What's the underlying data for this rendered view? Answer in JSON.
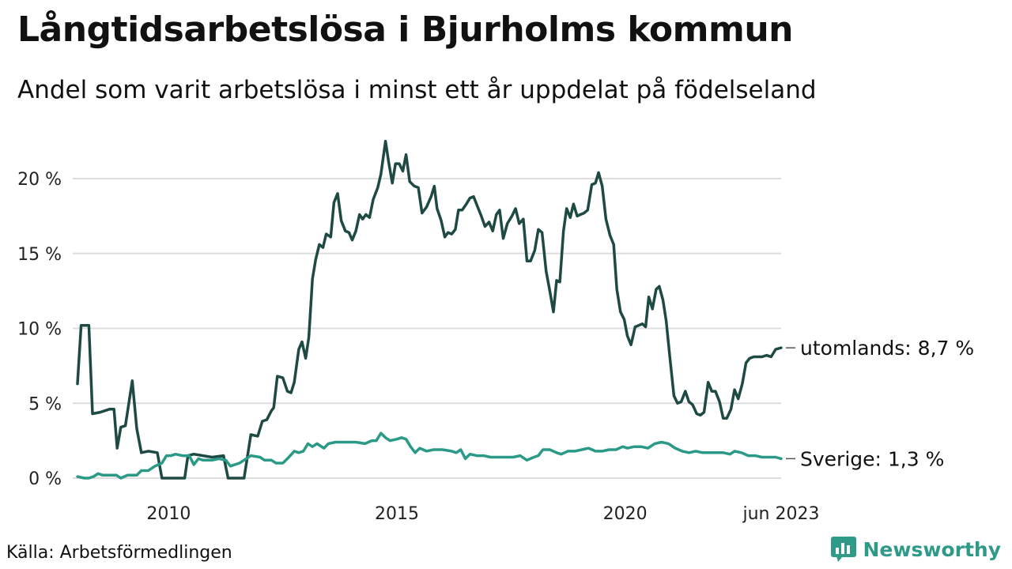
{
  "header": {
    "title": "Långtidsarbetslösa i Bjurholms kommun",
    "subtitle": "Andel som varit arbetslösa i minst ett år uppdelat på födelseland"
  },
  "footer": {
    "source": "Källa: Arbetsförmedlingen",
    "brand": "Newsworthy"
  },
  "colors": {
    "utomlands": "#1f4a43",
    "sverige": "#2a9a87",
    "grid": "#dddddd",
    "brand": "#2e9a87"
  },
  "icons": {
    "brand_logo": "bar-chart-speech-bubble-icon"
  },
  "chart_data": {
    "type": "line",
    "x_unit": "year",
    "x_range": [
      2008.0,
      2023.42
    ],
    "ylim": [
      0,
      22
    ],
    "y_ticks": [
      0,
      5,
      10,
      15,
      20
    ],
    "y_tick_labels": [
      "0 %",
      "5 %",
      "10 %",
      "15 %",
      "20 %"
    ],
    "x_ticks": [
      2010,
      2015,
      2020,
      2023.42
    ],
    "x_tick_labels": [
      "2010",
      "2015",
      "2020",
      "jun 2023"
    ],
    "grid": "horizontal",
    "series": [
      {
        "name": "utomlands",
        "end_label": "utomlands: 8,7 %",
        "color": "#1f4a43",
        "points": [
          [
            2008.0,
            6.3
          ],
          [
            2008.08,
            10.2
          ],
          [
            2008.25,
            10.2
          ],
          [
            2008.33,
            4.3
          ],
          [
            2008.5,
            4.4
          ],
          [
            2008.7,
            4.6
          ],
          [
            2008.8,
            4.6
          ],
          [
            2008.87,
            2.0
          ],
          [
            2008.95,
            3.4
          ],
          [
            2009.05,
            3.5
          ],
          [
            2009.15,
            5.5
          ],
          [
            2009.2,
            6.5
          ],
          [
            2009.3,
            3.3
          ],
          [
            2009.4,
            1.7
          ],
          [
            2009.55,
            1.8
          ],
          [
            2009.75,
            1.7
          ],
          [
            2009.85,
            0.0
          ],
          [
            2010.3,
            0.0
          ],
          [
            2010.35,
            0.0
          ],
          [
            2010.42,
            1.5
          ],
          [
            2010.55,
            1.6
          ],
          [
            2010.75,
            1.5
          ],
          [
            2010.95,
            1.4
          ],
          [
            2011.2,
            1.5
          ],
          [
            2011.3,
            0.0
          ],
          [
            2011.65,
            0.0
          ],
          [
            2011.8,
            2.9
          ],
          [
            2011.95,
            2.8
          ],
          [
            2012.05,
            3.8
          ],
          [
            2012.15,
            3.9
          ],
          [
            2012.25,
            4.5
          ],
          [
            2012.3,
            4.7
          ],
          [
            2012.38,
            6.8
          ],
          [
            2012.5,
            6.7
          ],
          [
            2012.6,
            5.8
          ],
          [
            2012.68,
            5.7
          ],
          [
            2012.75,
            6.4
          ],
          [
            2012.85,
            8.6
          ],
          [
            2012.92,
            9.1
          ],
          [
            2013.0,
            8.0
          ],
          [
            2013.07,
            9.4
          ],
          [
            2013.15,
            13.3
          ],
          [
            2013.22,
            14.6
          ],
          [
            2013.3,
            15.6
          ],
          [
            2013.38,
            15.4
          ],
          [
            2013.45,
            16.3
          ],
          [
            2013.55,
            16.1
          ],
          [
            2013.62,
            18.4
          ],
          [
            2013.7,
            19.0
          ],
          [
            2013.78,
            17.2
          ],
          [
            2013.87,
            16.5
          ],
          [
            2013.95,
            16.4
          ],
          [
            2014.02,
            15.9
          ],
          [
            2014.1,
            16.5
          ],
          [
            2014.18,
            17.6
          ],
          [
            2014.25,
            17.3
          ],
          [
            2014.32,
            17.6
          ],
          [
            2014.4,
            17.4
          ],
          [
            2014.48,
            18.6
          ],
          [
            2014.58,
            19.4
          ],
          [
            2014.65,
            20.3
          ],
          [
            2014.75,
            22.5
          ],
          [
            2014.82,
            21.1
          ],
          [
            2014.9,
            19.7
          ],
          [
            2014.97,
            21.0
          ],
          [
            2015.05,
            21.0
          ],
          [
            2015.13,
            20.5
          ],
          [
            2015.2,
            21.6
          ],
          [
            2015.28,
            19.8
          ],
          [
            2015.38,
            19.5
          ],
          [
            2015.47,
            19.4
          ],
          [
            2015.55,
            17.7
          ],
          [
            2015.65,
            18.1
          ],
          [
            2015.75,
            18.8
          ],
          [
            2015.82,
            19.5
          ],
          [
            2015.88,
            18.0
          ],
          [
            2015.97,
            17.2
          ],
          [
            2016.05,
            16.1
          ],
          [
            2016.12,
            16.4
          ],
          [
            2016.2,
            16.3
          ],
          [
            2016.28,
            16.6
          ],
          [
            2016.35,
            17.9
          ],
          [
            2016.43,
            17.9
          ],
          [
            2016.52,
            18.3
          ],
          [
            2016.6,
            18.7
          ],
          [
            2016.68,
            18.8
          ],
          [
            2016.77,
            18.1
          ],
          [
            2016.85,
            17.5
          ],
          [
            2016.93,
            16.8
          ],
          [
            2017.02,
            17.1
          ],
          [
            2017.1,
            16.5
          ],
          [
            2017.18,
            17.6
          ],
          [
            2017.25,
            17.9
          ],
          [
            2017.33,
            16.0
          ],
          [
            2017.42,
            17.0
          ],
          [
            2017.52,
            17.5
          ],
          [
            2017.6,
            18.0
          ],
          [
            2017.68,
            17.0
          ],
          [
            2017.77,
            17.3
          ],
          [
            2017.85,
            14.5
          ],
          [
            2017.93,
            14.5
          ],
          [
            2018.02,
            15.2
          ],
          [
            2018.1,
            16.6
          ],
          [
            2018.18,
            16.4
          ],
          [
            2018.27,
            13.8
          ],
          [
            2018.35,
            12.5
          ],
          [
            2018.43,
            11.1
          ],
          [
            2018.5,
            13.2
          ],
          [
            2018.57,
            13.1
          ],
          [
            2018.65,
            16.5
          ],
          [
            2018.72,
            18.0
          ],
          [
            2018.8,
            17.4
          ],
          [
            2018.87,
            18.3
          ],
          [
            2018.95,
            17.5
          ],
          [
            2019.02,
            17.6
          ],
          [
            2019.1,
            17.7
          ],
          [
            2019.18,
            17.9
          ],
          [
            2019.27,
            19.6
          ],
          [
            2019.35,
            19.7
          ],
          [
            2019.42,
            20.4
          ],
          [
            2019.5,
            19.5
          ],
          [
            2019.58,
            17.3
          ],
          [
            2019.67,
            16.2
          ],
          [
            2019.75,
            15.6
          ],
          [
            2019.82,
            12.6
          ],
          [
            2019.9,
            11.1
          ],
          [
            2019.98,
            10.6
          ],
          [
            2020.05,
            9.5
          ],
          [
            2020.13,
            8.9
          ],
          [
            2020.22,
            10.1
          ],
          [
            2020.3,
            10.2
          ],
          [
            2020.38,
            10.3
          ],
          [
            2020.45,
            10.1
          ],
          [
            2020.52,
            12.1
          ],
          [
            2020.6,
            11.3
          ],
          [
            2020.68,
            12.6
          ],
          [
            2020.75,
            12.8
          ],
          [
            2020.83,
            11.9
          ],
          [
            2020.9,
            10.5
          ],
          [
            2020.98,
            8.1
          ],
          [
            2021.07,
            5.5
          ],
          [
            2021.15,
            5.0
          ],
          [
            2021.23,
            5.1
          ],
          [
            2021.32,
            5.8
          ],
          [
            2021.4,
            5.1
          ],
          [
            2021.48,
            4.9
          ],
          [
            2021.57,
            4.3
          ],
          [
            2021.65,
            4.2
          ],
          [
            2021.73,
            4.4
          ],
          [
            2021.82,
            6.4
          ],
          [
            2021.9,
            5.8
          ],
          [
            2021.98,
            5.8
          ],
          [
            2022.07,
            5.1
          ],
          [
            2022.15,
            4.0
          ],
          [
            2022.23,
            4.0
          ],
          [
            2022.32,
            4.6
          ],
          [
            2022.4,
            5.9
          ],
          [
            2022.48,
            5.3
          ],
          [
            2022.57,
            6.3
          ],
          [
            2022.65,
            7.7
          ],
          [
            2022.73,
            8.0
          ],
          [
            2022.82,
            8.1
          ],
          [
            2022.9,
            8.1
          ],
          [
            2023.0,
            8.1
          ],
          [
            2023.1,
            8.2
          ],
          [
            2023.2,
            8.1
          ],
          [
            2023.3,
            8.6
          ],
          [
            2023.42,
            8.7
          ]
        ]
      },
      {
        "name": "Sverige",
        "end_label": "Sverige: 1,3 %",
        "color": "#2a9a87",
        "points": [
          [
            2008.0,
            0.1
          ],
          [
            2008.15,
            0.0
          ],
          [
            2008.25,
            0.0
          ],
          [
            2008.35,
            0.1
          ],
          [
            2008.45,
            0.3
          ],
          [
            2008.55,
            0.2
          ],
          [
            2008.85,
            0.2
          ],
          [
            2008.95,
            0.0
          ],
          [
            2009.1,
            0.2
          ],
          [
            2009.3,
            0.2
          ],
          [
            2009.4,
            0.5
          ],
          [
            2009.55,
            0.5
          ],
          [
            2009.7,
            0.8
          ],
          [
            2009.85,
            1.0
          ],
          [
            2009.95,
            1.5
          ],
          [
            2010.05,
            1.5
          ],
          [
            2010.15,
            1.6
          ],
          [
            2010.3,
            1.5
          ],
          [
            2010.45,
            1.5
          ],
          [
            2010.55,
            0.9
          ],
          [
            2010.65,
            1.3
          ],
          [
            2010.75,
            1.2
          ],
          [
            2010.95,
            1.2
          ],
          [
            2011.1,
            1.3
          ],
          [
            2011.25,
            1.2
          ],
          [
            2011.35,
            0.8
          ],
          [
            2011.55,
            1.0
          ],
          [
            2011.65,
            1.2
          ],
          [
            2011.8,
            1.5
          ],
          [
            2012.0,
            1.4
          ],
          [
            2012.1,
            1.2
          ],
          [
            2012.25,
            1.2
          ],
          [
            2012.35,
            1.0
          ],
          [
            2012.5,
            1.0
          ],
          [
            2012.6,
            1.3
          ],
          [
            2012.75,
            1.8
          ],
          [
            2012.85,
            1.7
          ],
          [
            2012.95,
            1.8
          ],
          [
            2013.05,
            2.3
          ],
          [
            2013.15,
            2.1
          ],
          [
            2013.25,
            2.3
          ],
          [
            2013.4,
            2.0
          ],
          [
            2013.5,
            2.3
          ],
          [
            2013.65,
            2.4
          ],
          [
            2013.8,
            2.4
          ],
          [
            2013.95,
            2.4
          ],
          [
            2014.1,
            2.4
          ],
          [
            2014.3,
            2.3
          ],
          [
            2014.45,
            2.5
          ],
          [
            2014.55,
            2.5
          ],
          [
            2014.65,
            3.0
          ],
          [
            2014.75,
            2.7
          ],
          [
            2014.85,
            2.5
          ],
          [
            2015.0,
            2.6
          ],
          [
            2015.1,
            2.7
          ],
          [
            2015.2,
            2.6
          ],
          [
            2015.3,
            2.1
          ],
          [
            2015.4,
            1.7
          ],
          [
            2015.5,
            2.0
          ],
          [
            2015.65,
            1.8
          ],
          [
            2015.8,
            1.9
          ],
          [
            2016.0,
            1.9
          ],
          [
            2016.2,
            1.8
          ],
          [
            2016.3,
            1.7
          ],
          [
            2016.4,
            1.9
          ],
          [
            2016.5,
            1.3
          ],
          [
            2016.6,
            1.6
          ],
          [
            2016.75,
            1.5
          ],
          [
            2016.9,
            1.5
          ],
          [
            2017.05,
            1.4
          ],
          [
            2017.2,
            1.4
          ],
          [
            2017.35,
            1.4
          ],
          [
            2017.55,
            1.4
          ],
          [
            2017.7,
            1.5
          ],
          [
            2017.85,
            1.2
          ],
          [
            2018.0,
            1.4
          ],
          [
            2018.1,
            1.5
          ],
          [
            2018.2,
            1.9
          ],
          [
            2018.35,
            1.9
          ],
          [
            2018.5,
            1.7
          ],
          [
            2018.6,
            1.6
          ],
          [
            2018.75,
            1.8
          ],
          [
            2018.9,
            1.8
          ],
          [
            2019.05,
            1.9
          ],
          [
            2019.2,
            2.0
          ],
          [
            2019.35,
            1.8
          ],
          [
            2019.5,
            1.8
          ],
          [
            2019.65,
            1.9
          ],
          [
            2019.8,
            1.9
          ],
          [
            2019.95,
            2.1
          ],
          [
            2020.05,
            2.0
          ],
          [
            2020.2,
            2.1
          ],
          [
            2020.35,
            2.1
          ],
          [
            2020.5,
            2.0
          ],
          [
            2020.65,
            2.3
          ],
          [
            2020.8,
            2.4
          ],
          [
            2020.95,
            2.3
          ],
          [
            2021.1,
            2.0
          ],
          [
            2021.25,
            1.8
          ],
          [
            2021.4,
            1.7
          ],
          [
            2021.55,
            1.8
          ],
          [
            2021.7,
            1.7
          ],
          [
            2021.85,
            1.7
          ],
          [
            2022.0,
            1.7
          ],
          [
            2022.15,
            1.7
          ],
          [
            2022.3,
            1.6
          ],
          [
            2022.4,
            1.8
          ],
          [
            2022.55,
            1.7
          ],
          [
            2022.7,
            1.5
          ],
          [
            2022.85,
            1.5
          ],
          [
            2023.0,
            1.4
          ],
          [
            2023.15,
            1.4
          ],
          [
            2023.3,
            1.4
          ],
          [
            2023.42,
            1.3
          ]
        ]
      }
    ]
  }
}
